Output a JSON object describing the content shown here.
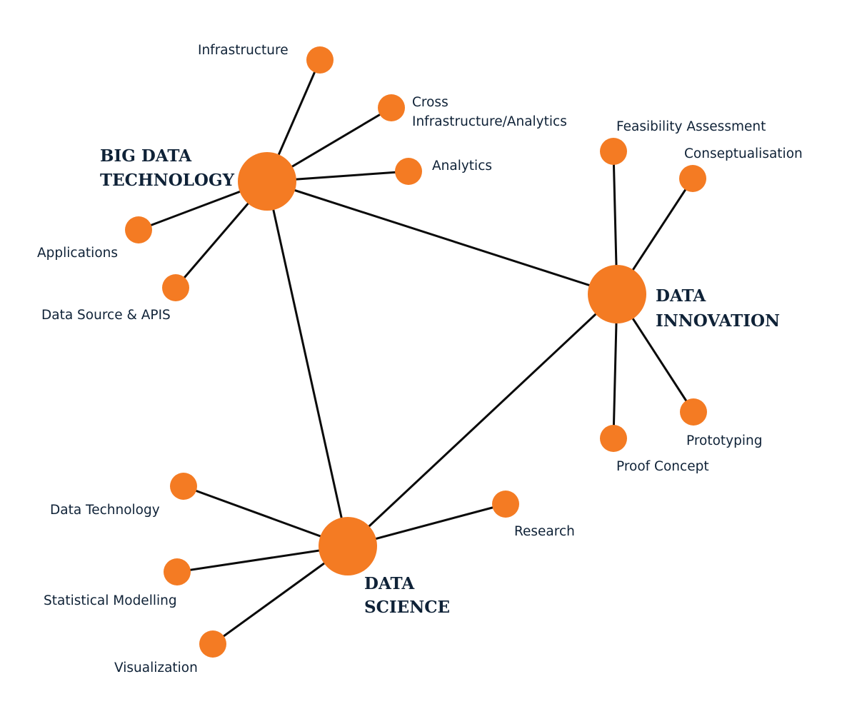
{
  "diagram": {
    "colors": {
      "node": "#f47b23",
      "edge": "#0a0a0a",
      "text": "#0f2237",
      "background": "#ffffff"
    },
    "hubs": {
      "big_data": {
        "line1": "BIG DATA",
        "line2": "TECHNOLOGY"
      },
      "innovation": {
        "line1": "DATA",
        "line2": "INNOVATION"
      },
      "science": {
        "line1": "DATA",
        "line2": "SCIENCE"
      }
    },
    "leaves": {
      "infrastructure": "Infrastructure",
      "cross_line1": "Cross",
      "cross_line2": "Infrastructure/Analytics",
      "analytics": "Analytics",
      "applications": "Applications",
      "data_source": "Data Source & APIS",
      "feasibility": "Feasibility Assessment",
      "conseptualisation": "Conseptualisation",
      "prototyping": "Prototyping",
      "proof_concept": "Proof Concept",
      "data_technology": "Data Technology",
      "statistical_modelling": "Statistical Modelling",
      "visualization": "Visualization",
      "research": "Research"
    }
  }
}
